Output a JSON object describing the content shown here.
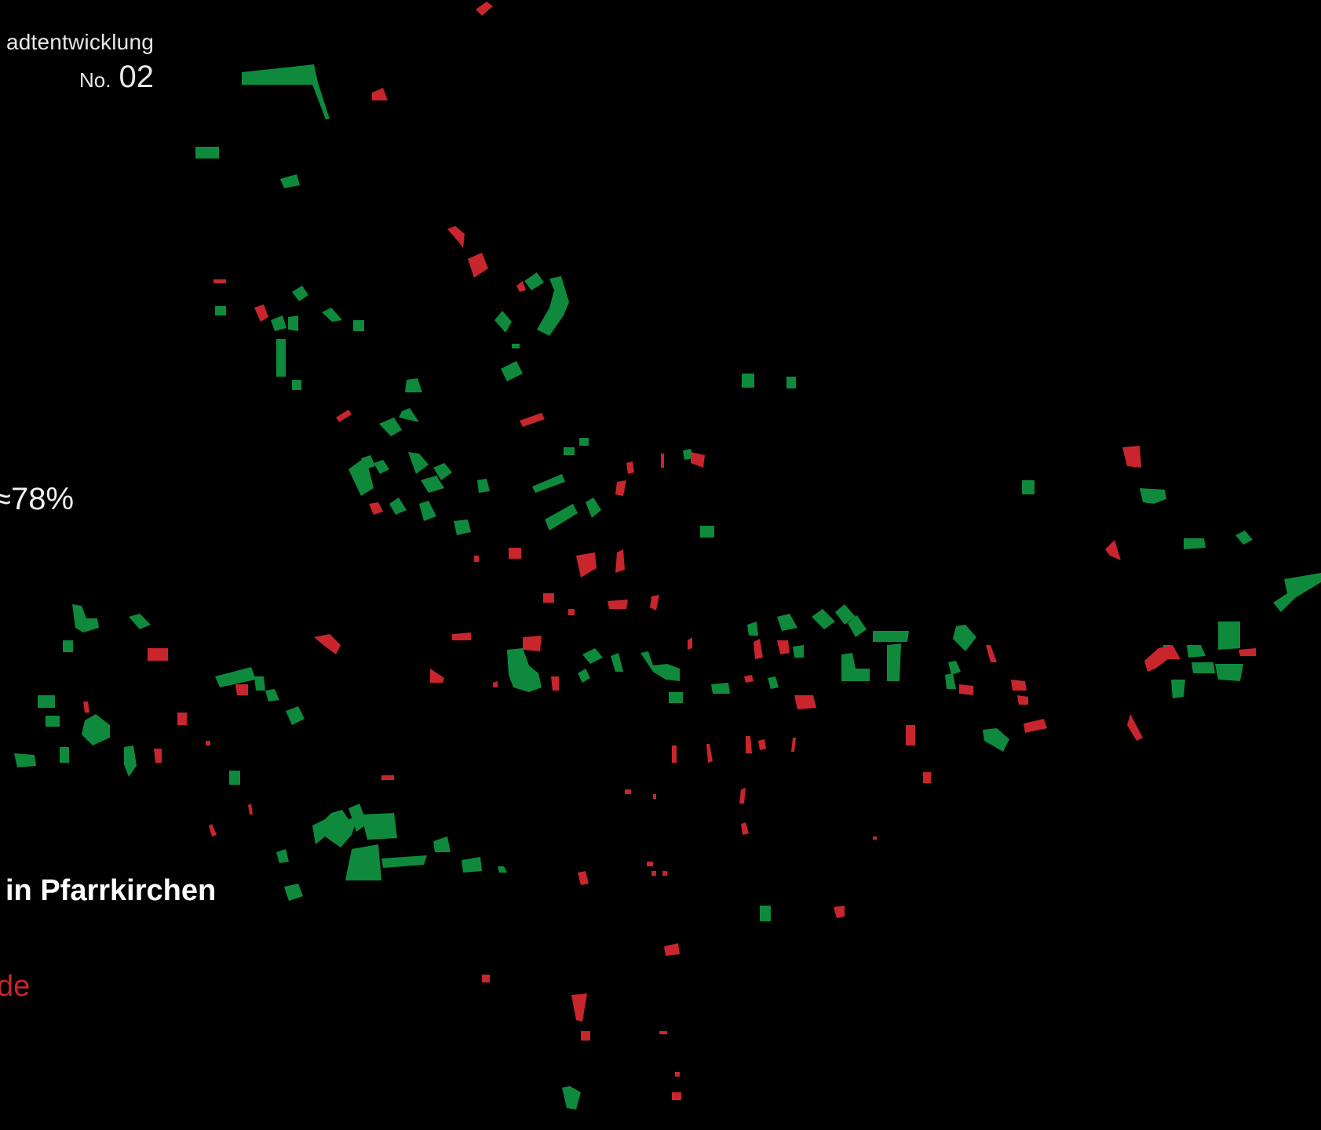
{
  "header": {
    "subtitle": "adtentwicklung",
    "number_prefix": "No.",
    "number_value": "02"
  },
  "stats": {
    "percentage": "≈78%"
  },
  "map": {
    "title": "in Pfarrkirchen",
    "legend_text": "de",
    "background": "#000000",
    "colors": {
      "green": "#0f8a3c",
      "red": "#c8262c"
    }
  }
}
